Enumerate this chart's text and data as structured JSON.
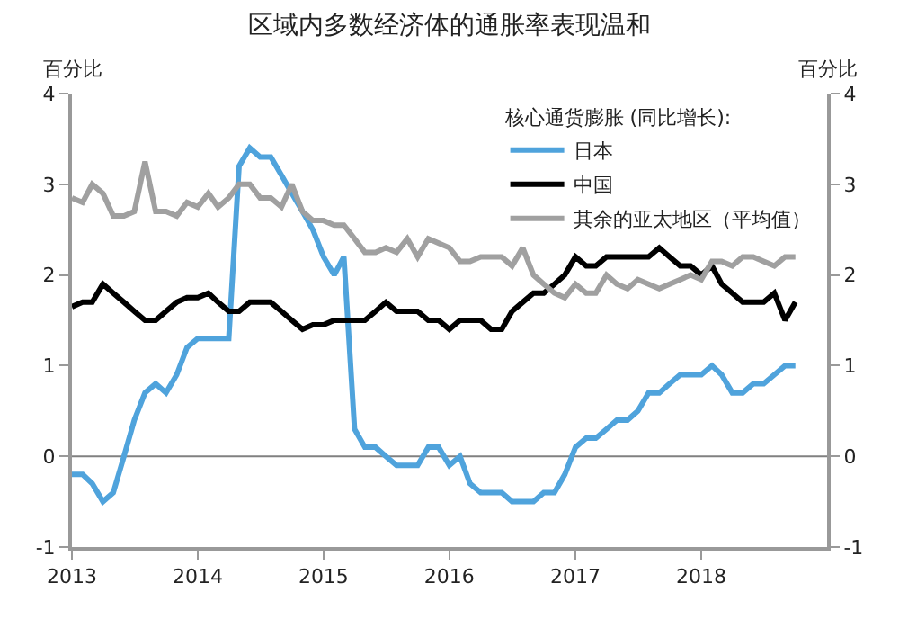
{
  "chart_data": {
    "type": "line",
    "title": "区域内多数经济体的通胀率表现温和",
    "ylabel": "百分比",
    "y2label": "百分比",
    "legend_title": "核心通货膨胀 (同比增长):",
    "x": [
      "2013-01",
      "2013-02",
      "2013-03",
      "2013-04",
      "2013-05",
      "2013-06",
      "2013-07",
      "2013-08",
      "2013-09",
      "2013-10",
      "2013-11",
      "2013-12",
      "2014-01",
      "2014-02",
      "2014-03",
      "2014-04",
      "2014-05",
      "2014-06",
      "2014-07",
      "2014-08",
      "2014-09",
      "2014-10",
      "2014-11",
      "2014-12",
      "2015-01",
      "2015-02",
      "2015-03",
      "2015-04",
      "2015-05",
      "2015-06",
      "2015-07",
      "2015-08",
      "2015-09",
      "2015-10",
      "2015-11",
      "2015-12",
      "2016-01",
      "2016-02",
      "2016-03",
      "2016-04",
      "2016-05",
      "2016-06",
      "2016-07",
      "2016-08",
      "2016-09",
      "2016-10",
      "2016-11",
      "2016-12",
      "2017-01",
      "2017-02",
      "2017-03",
      "2017-04",
      "2017-05",
      "2017-06",
      "2017-07",
      "2017-08",
      "2017-09",
      "2017-10",
      "2017-11",
      "2017-12",
      "2018-01",
      "2018-02",
      "2018-03",
      "2018-04",
      "2018-05",
      "2018-06",
      "2018-07",
      "2018-08",
      "2018-09",
      "2018-10"
    ],
    "series": [
      {
        "name": "日本",
        "color": "#4fa3dc",
        "values": [
          -0.2,
          -0.2,
          -0.3,
          -0.5,
          -0.4,
          0,
          0.4,
          0.7,
          0.8,
          0.7,
          0.9,
          1.2,
          1.3,
          1.3,
          1.3,
          1.3,
          3.2,
          3.4,
          3.3,
          3.3,
          3.1,
          2.9,
          2.7,
          2.5,
          2.2,
          2.0,
          2.2,
          0.3,
          0.1,
          0.1,
          0,
          -0.1,
          -0.1,
          -0.1,
          0.1,
          0.1,
          -0.1,
          0,
          -0.3,
          -0.4,
          -0.4,
          -0.4,
          -0.5,
          -0.5,
          -0.5,
          -0.4,
          -0.4,
          -0.2,
          0.1,
          0.2,
          0.2,
          0.3,
          0.4,
          0.4,
          0.5,
          0.7,
          0.7,
          0.8,
          0.9,
          0.9,
          0.9,
          1.0,
          0.9,
          0.7,
          0.7,
          0.8,
          0.8,
          0.9,
          1.0,
          1.0
        ]
      },
      {
        "name": "中国",
        "color": "#000000",
        "values": [
          1.65,
          1.7,
          1.7,
          1.9,
          1.8,
          1.7,
          1.6,
          1.5,
          1.5,
          1.6,
          1.7,
          1.75,
          1.75,
          1.8,
          1.7,
          1.6,
          1.6,
          1.7,
          1.7,
          1.7,
          1.6,
          1.5,
          1.4,
          1.45,
          1.45,
          1.5,
          1.5,
          1.5,
          1.5,
          1.6,
          1.7,
          1.6,
          1.6,
          1.6,
          1.5,
          1.5,
          1.4,
          1.5,
          1.5,
          1.5,
          1.4,
          1.4,
          1.6,
          1.7,
          1.8,
          1.8,
          1.9,
          2.0,
          2.2,
          2.1,
          2.1,
          2.2,
          2.2,
          2.2,
          2.2,
          2.2,
          2.3,
          2.2,
          2.1,
          2.1,
          2.0,
          2.1,
          1.9,
          1.8,
          1.7,
          1.7,
          1.7,
          1.8,
          1.5,
          1.7
        ]
      },
      {
        "name": "其余的亚太地区（平均值）",
        "color": "#a0a0a0",
        "values": [
          2.85,
          2.8,
          3.0,
          2.9,
          2.65,
          2.65,
          2.7,
          3.25,
          2.7,
          2.7,
          2.65,
          2.8,
          2.75,
          2.9,
          2.75,
          2.85,
          3.0,
          3.0,
          2.85,
          2.85,
          2.75,
          3.0,
          2.7,
          2.6,
          2.6,
          2.55,
          2.55,
          2.4,
          2.25,
          2.25,
          2.3,
          2.25,
          2.4,
          2.2,
          2.4,
          2.35,
          2.3,
          2.15,
          2.15,
          2.2,
          2.2,
          2.2,
          2.1,
          2.3,
          2.0,
          1.9,
          1.8,
          1.75,
          1.9,
          1.8,
          1.8,
          2.0,
          1.9,
          1.85,
          1.95,
          1.9,
          1.85,
          1.9,
          1.95,
          2.0,
          1.95,
          2.15,
          2.15,
          2.1,
          2.2,
          2.2,
          2.15,
          2.1,
          2.2,
          2.2
        ]
      }
    ],
    "xlim": [
      "2013-01-01",
      "2019-01-01"
    ],
    "xticks": [
      {
        "value": "2013-01-01",
        "label": "2013"
      },
      {
        "value": "2014-01-01",
        "label": "2014"
      },
      {
        "value": "2015-01-01",
        "label": "2015"
      },
      {
        "value": "2016-01-01",
        "label": "2016"
      },
      {
        "value": "2017-01-01",
        "label": "2017"
      },
      {
        "value": "2018-01-01",
        "label": "2018"
      }
    ],
    "ylim": [
      -1,
      4
    ],
    "yticks": [
      -1,
      0,
      1,
      2,
      3,
      4
    ],
    "y2lim": [
      -1,
      4
    ],
    "y2ticks": [
      -1,
      0,
      1,
      2,
      3,
      4
    ],
    "ref_lines": [
      {
        "axis": "y",
        "value": 0,
        "color": "#808080"
      }
    ],
    "grid": false,
    "legend": "top right",
    "marker": "none",
    "line_style": "solid"
  }
}
